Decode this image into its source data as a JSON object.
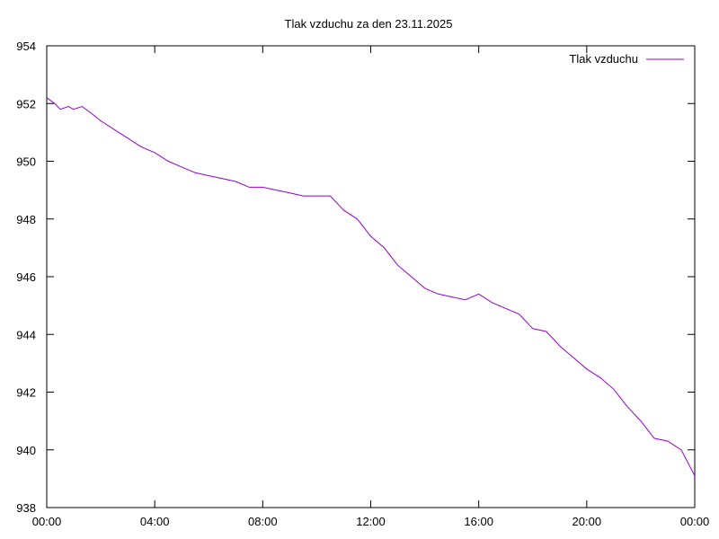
{
  "chart_data": {
    "type": "line",
    "title": "Tlak vzduchu za den 23.11.2025",
    "xlabel": "",
    "ylabel": "",
    "xlim": [
      "00:00",
      "24:00"
    ],
    "ylim": [
      938,
      954
    ],
    "x_ticks": [
      "00:00",
      "04:00",
      "08:00",
      "12:00",
      "16:00",
      "20:00",
      "00:00"
    ],
    "y_ticks": [
      "938",
      "940",
      "942",
      "944",
      "946",
      "948",
      "950",
      "952",
      "954"
    ],
    "grid": false,
    "legend_position": "top-right",
    "series": [
      {
        "name": "Tlak vzduchu",
        "color": "#9400d3",
        "x_hours": [
          0.0,
          0.3,
          0.5,
          0.8,
          1.0,
          1.3,
          1.6,
          2.0,
          2.5,
          3.0,
          3.5,
          4.0,
          4.5,
          5.0,
          5.5,
          6.0,
          6.5,
          7.0,
          7.5,
          8.0,
          8.5,
          9.0,
          9.5,
          10.0,
          10.5,
          11.0,
          11.5,
          12.0,
          12.5,
          13.0,
          13.5,
          14.0,
          14.5,
          15.0,
          15.5,
          16.0,
          16.5,
          17.0,
          17.5,
          18.0,
          18.5,
          19.0,
          19.5,
          20.0,
          20.5,
          21.0,
          21.5,
          22.0,
          22.5,
          23.0,
          23.5,
          24.0
        ],
        "values": [
          952.2,
          952.0,
          951.8,
          951.9,
          951.8,
          951.9,
          951.7,
          951.4,
          951.1,
          950.8,
          950.5,
          950.3,
          950.0,
          949.8,
          949.6,
          949.5,
          949.4,
          949.3,
          949.1,
          949.1,
          949.0,
          948.9,
          948.8,
          948.8,
          948.8,
          948.3,
          948.0,
          947.4,
          947.0,
          946.4,
          946.0,
          945.6,
          945.4,
          945.3,
          945.2,
          945.4,
          945.1,
          944.9,
          944.7,
          944.2,
          944.1,
          943.6,
          943.2,
          942.8,
          942.5,
          942.1,
          941.5,
          941.0,
          940.4,
          940.3,
          940.0,
          939.1
        ]
      }
    ]
  }
}
